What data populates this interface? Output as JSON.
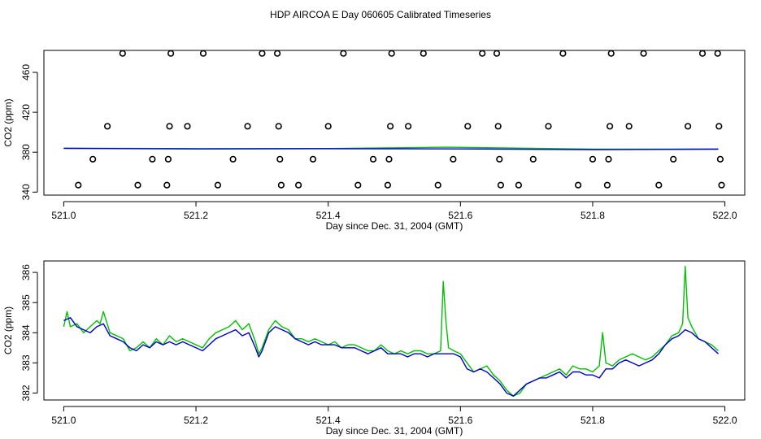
{
  "title": "HDP AIRCOA E  Day 060605  Calibrated Timeseries",
  "colors": {
    "green": "#00c000",
    "blue": "#0000c8",
    "axis": "#000000"
  },
  "chart_data": [
    {
      "type": "scatter",
      "xlabel": "Day since Dec. 31, 2004 (GMT)",
      "ylabel": "CO2 (ppm)",
      "xlim": [
        520.97,
        522.03
      ],
      "ylim": [
        337,
        482
      ],
      "xticks": [
        521.0,
        521.2,
        521.4,
        521.6,
        521.8,
        522.0
      ],
      "xtick_labels": [
        "521.0",
        "521.2",
        "521.4",
        "521.6",
        "521.8",
        "522.0"
      ],
      "yticks": [
        340,
        380,
        420,
        460
      ],
      "ytick_labels": [
        "340",
        "380",
        "420",
        "460"
      ],
      "grid": false,
      "calibration_points": {
        "marker": "open-circle",
        "points": [
          [
            521.022,
            347
          ],
          [
            521.044,
            373
          ],
          [
            521.066,
            406
          ],
          [
            521.089,
            479
          ],
          [
            521.112,
            347
          ],
          [
            521.134,
            373
          ],
          [
            521.156,
            347
          ],
          [
            521.158,
            373
          ],
          [
            521.16,
            406
          ],
          [
            521.162,
            479
          ],
          [
            521.187,
            406
          ],
          [
            521.211,
            479
          ],
          [
            521.233,
            347
          ],
          [
            521.256,
            373
          ],
          [
            521.278,
            406
          ],
          [
            521.3,
            479
          ],
          [
            521.323,
            479
          ],
          [
            521.325,
            406
          ],
          [
            521.327,
            373
          ],
          [
            521.329,
            347
          ],
          [
            521.355,
            347
          ],
          [
            521.377,
            373
          ],
          [
            521.4,
            406
          ],
          [
            521.423,
            479
          ],
          [
            521.445,
            347
          ],
          [
            521.468,
            373
          ],
          [
            521.49,
            347
          ],
          [
            521.492,
            373
          ],
          [
            521.494,
            406
          ],
          [
            521.496,
            479
          ],
          [
            521.521,
            406
          ],
          [
            521.544,
            479
          ],
          [
            521.566,
            347
          ],
          [
            521.589,
            373
          ],
          [
            521.611,
            406
          ],
          [
            521.633,
            479
          ],
          [
            521.655,
            479
          ],
          [
            521.657,
            406
          ],
          [
            521.659,
            373
          ],
          [
            521.661,
            347
          ],
          [
            521.688,
            347
          ],
          [
            521.71,
            373
          ],
          [
            521.733,
            406
          ],
          [
            521.755,
            479
          ],
          [
            521.778,
            347
          ],
          [
            521.8,
            373
          ],
          [
            521.822,
            347
          ],
          [
            521.824,
            373
          ],
          [
            521.826,
            406
          ],
          [
            521.828,
            479
          ],
          [
            521.855,
            406
          ],
          [
            521.877,
            479
          ],
          [
            521.9,
            347
          ],
          [
            521.922,
            373
          ],
          [
            521.944,
            406
          ],
          [
            521.966,
            479
          ],
          [
            521.989,
            479
          ],
          [
            521.991,
            406
          ],
          [
            521.993,
            373
          ],
          [
            521.995,
            347
          ]
        ]
      },
      "series": [
        {
          "color": "green",
          "x": [
            521.0,
            521.2,
            521.4,
            521.58,
            521.8,
            521.99
          ],
          "values": [
            384.0,
            383.6,
            383.7,
            385.0,
            383.0,
            383.2
          ]
        },
        {
          "color": "blue",
          "x": [
            521.0,
            521.2,
            521.4,
            521.6,
            521.8,
            521.99
          ],
          "values": [
            383.8,
            383.3,
            383.5,
            383.3,
            382.6,
            383.0
          ]
        }
      ]
    },
    {
      "type": "line",
      "xlabel": "Day since Dec. 31, 2004 (GMT)",
      "ylabel": "CO2 (ppm)",
      "xlim": [
        520.97,
        522.03
      ],
      "ylim": [
        381.77,
        386.38
      ],
      "xticks": [
        521.0,
        521.2,
        521.4,
        521.6,
        521.8,
        522.0
      ],
      "xtick_labels": [
        "521.0",
        "521.2",
        "521.4",
        "521.6",
        "521.8",
        "522.0"
      ],
      "yticks": [
        382,
        383,
        384,
        385,
        386
      ],
      "ytick_labels": [
        "382",
        "383",
        "384",
        "385",
        "386"
      ],
      "grid": false,
      "series": [
        {
          "color": "green",
          "x": [
            521.0,
            521.005,
            521.01,
            521.02,
            521.03,
            521.04,
            521.05,
            521.055,
            521.06,
            521.07,
            521.08,
            521.09,
            521.1,
            521.11,
            521.12,
            521.13,
            521.14,
            521.15,
            521.16,
            521.17,
            521.18,
            521.19,
            521.2,
            521.21,
            521.22,
            521.23,
            521.24,
            521.25,
            521.26,
            521.27,
            521.28,
            521.29,
            521.295,
            521.3,
            521.31,
            521.32,
            521.325,
            521.33,
            521.34,
            521.35,
            521.36,
            521.37,
            521.38,
            521.39,
            521.4,
            521.41,
            521.42,
            521.43,
            521.44,
            521.45,
            521.46,
            521.47,
            521.48,
            521.49,
            521.5,
            521.51,
            521.52,
            521.53,
            521.54,
            521.55,
            521.56,
            521.57,
            521.574,
            521.578,
            521.582,
            521.59,
            521.6,
            521.61,
            521.62,
            521.63,
            521.64,
            521.65,
            521.66,
            521.67,
            521.68,
            521.69,
            521.7,
            521.71,
            521.72,
            521.73,
            521.74,
            521.75,
            521.76,
            521.77,
            521.78,
            521.79,
            521.8,
            521.81,
            521.815,
            521.82,
            521.83,
            521.84,
            521.85,
            521.86,
            521.87,
            521.88,
            521.89,
            521.9,
            521.91,
            521.92,
            521.93,
            521.936,
            521.94,
            521.944,
            521.95,
            521.96,
            521.97,
            521.98,
            521.99
          ],
          "values": [
            384.2,
            384.7,
            384.2,
            384.3,
            384.0,
            384.2,
            384.4,
            384.3,
            384.7,
            384.0,
            383.9,
            383.8,
            383.4,
            383.5,
            383.7,
            383.5,
            383.8,
            383.6,
            383.9,
            383.7,
            383.8,
            383.7,
            383.6,
            383.5,
            383.8,
            384.0,
            384.1,
            384.2,
            384.4,
            384.1,
            384.3,
            383.7,
            383.3,
            383.5,
            384.1,
            384.4,
            384.3,
            384.2,
            384.1,
            383.8,
            383.8,
            383.7,
            383.8,
            383.7,
            383.6,
            383.7,
            383.5,
            383.6,
            383.6,
            383.5,
            383.4,
            383.4,
            383.6,
            383.4,
            383.3,
            383.4,
            383.3,
            383.4,
            383.4,
            383.3,
            383.3,
            383.4,
            385.7,
            384.4,
            383.5,
            383.4,
            383.3,
            383.0,
            382.7,
            382.8,
            382.9,
            382.6,
            382.4,
            382.1,
            381.9,
            382.0,
            382.3,
            382.4,
            382.5,
            382.6,
            382.7,
            382.8,
            382.6,
            382.9,
            382.8,
            382.8,
            382.7,
            382.9,
            384.0,
            383.0,
            382.9,
            383.1,
            383.2,
            383.3,
            383.2,
            383.1,
            383.2,
            383.4,
            383.6,
            383.9,
            384.0,
            384.3,
            386.2,
            384.5,
            384.2,
            383.8,
            383.7,
            383.6,
            383.4
          ]
        },
        {
          "color": "blue",
          "x": [
            521.0,
            521.01,
            521.02,
            521.03,
            521.04,
            521.05,
            521.06,
            521.07,
            521.08,
            521.09,
            521.1,
            521.11,
            521.12,
            521.13,
            521.14,
            521.15,
            521.16,
            521.17,
            521.18,
            521.19,
            521.2,
            521.21,
            521.22,
            521.23,
            521.24,
            521.25,
            521.26,
            521.27,
            521.28,
            521.29,
            521.295,
            521.3,
            521.31,
            521.32,
            521.33,
            521.34,
            521.35,
            521.36,
            521.37,
            521.38,
            521.39,
            521.4,
            521.41,
            521.42,
            521.43,
            521.44,
            521.45,
            521.46,
            521.47,
            521.48,
            521.49,
            521.5,
            521.51,
            521.52,
            521.53,
            521.54,
            521.55,
            521.56,
            521.57,
            521.58,
            521.59,
            521.6,
            521.61,
            521.62,
            521.63,
            521.64,
            521.65,
            521.66,
            521.67,
            521.68,
            521.69,
            521.7,
            521.71,
            521.72,
            521.73,
            521.74,
            521.75,
            521.76,
            521.77,
            521.78,
            521.79,
            521.8,
            521.81,
            521.82,
            521.83,
            521.84,
            521.85,
            521.86,
            521.87,
            521.88,
            521.89,
            521.9,
            521.91,
            521.92,
            521.93,
            521.94,
            521.95,
            521.96,
            521.97,
            521.98,
            521.99
          ],
          "values": [
            384.4,
            384.5,
            384.2,
            384.1,
            384.0,
            384.2,
            384.3,
            383.9,
            383.8,
            383.7,
            383.5,
            383.4,
            383.6,
            383.5,
            383.7,
            383.6,
            383.7,
            383.6,
            383.7,
            383.6,
            383.5,
            383.4,
            383.6,
            383.8,
            383.9,
            384.0,
            384.1,
            383.9,
            384.0,
            383.5,
            383.2,
            383.4,
            384.0,
            384.2,
            384.1,
            384.0,
            383.8,
            383.7,
            383.6,
            383.7,
            383.6,
            383.6,
            383.6,
            383.5,
            383.5,
            383.5,
            383.4,
            383.3,
            383.4,
            383.5,
            383.3,
            383.3,
            383.3,
            383.2,
            383.3,
            383.3,
            383.2,
            383.3,
            383.3,
            383.3,
            383.3,
            383.2,
            382.8,
            382.7,
            382.8,
            382.7,
            382.5,
            382.3,
            382.0,
            381.9,
            382.1,
            382.3,
            382.4,
            382.5,
            382.5,
            382.6,
            382.7,
            382.5,
            382.7,
            382.7,
            382.6,
            382.6,
            382.5,
            382.8,
            382.8,
            383.0,
            383.1,
            383.0,
            382.9,
            383.0,
            383.1,
            383.3,
            383.6,
            383.8,
            383.9,
            384.1,
            384.0,
            383.8,
            383.7,
            383.5,
            383.3
          ]
        }
      ]
    }
  ]
}
